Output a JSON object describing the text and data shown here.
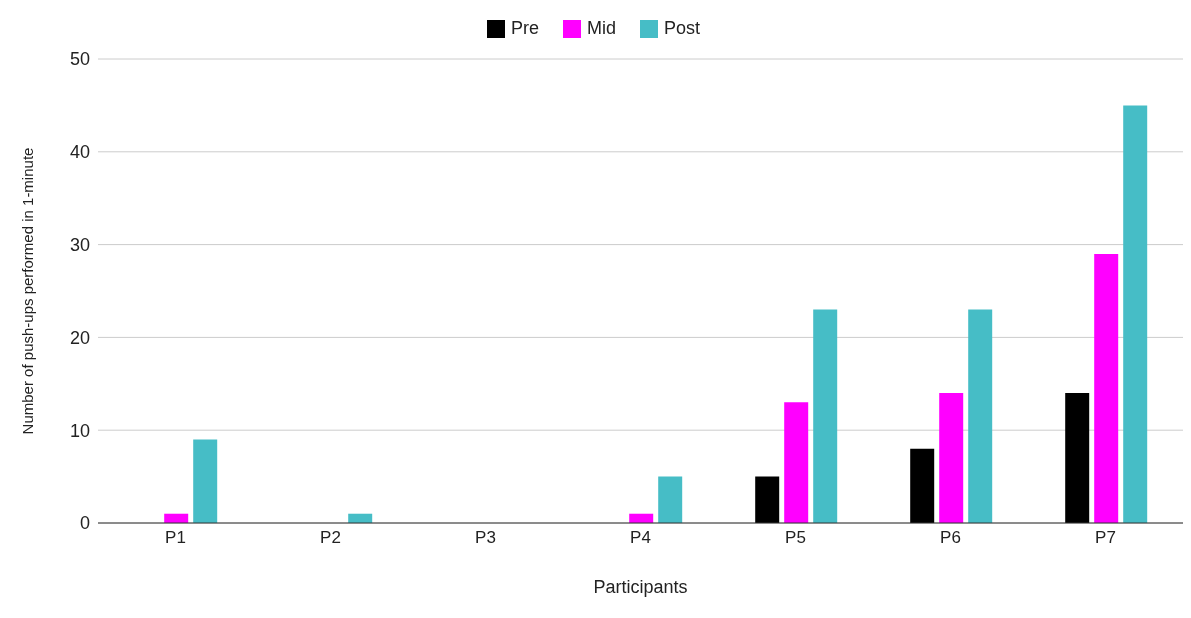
{
  "chart_data": {
    "type": "bar",
    "xlabel": "Participants",
    "ylabel": "Number of push-ups performed in 1-minute",
    "categories": [
      "P1",
      "P2",
      "P3",
      "P4",
      "P5",
      "P6",
      "P7"
    ],
    "series": [
      {
        "name": "Pre",
        "color": "#000000",
        "values": [
          0,
          0,
          0,
          0,
          5,
          8,
          14
        ]
      },
      {
        "name": "Mid",
        "color": "#ff00ff",
        "values": [
          1,
          0,
          0,
          1,
          13,
          14,
          29
        ]
      },
      {
        "name": "Post",
        "color": "#46bdc6",
        "values": [
          9,
          1,
          0,
          5,
          23,
          23,
          45
        ]
      }
    ],
    "ylim": [
      0,
      50
    ],
    "yticks": [
      0,
      10,
      20,
      30,
      40,
      50
    ],
    "grid": "y",
    "legend": "top"
  }
}
